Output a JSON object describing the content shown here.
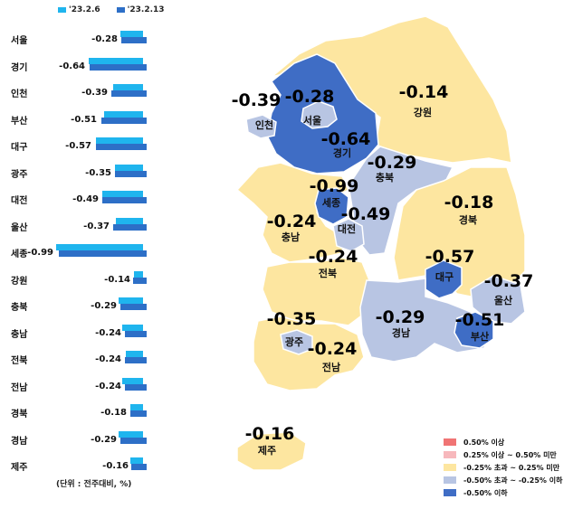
{
  "legend_top": {
    "series1": "'23.2.6",
    "series2": "'23.2.13",
    "color1": "#1fb5ee",
    "color2": "#2d6fc7"
  },
  "unit_note": "(단위 : 전주대비, %)",
  "chart_data": {
    "type": "bar",
    "orientation": "horizontal",
    "categories": [
      "서울",
      "경기",
      "인천",
      "부산",
      "대구",
      "광주",
      "대전",
      "울산",
      "세종",
      "강원",
      "충북",
      "충남",
      "전북",
      "전남",
      "경북",
      "경남",
      "제주"
    ],
    "labels": [
      "-0.28",
      "-0.64",
      "-0.39",
      "-0.51",
      "-0.57",
      "-0.35",
      "-0.49",
      "-0.37",
      "-0.99",
      "-0.14",
      "-0.29",
      "-0.24",
      "-0.24",
      "-0.24",
      "-0.18",
      "-0.29",
      "-0.16"
    ],
    "series": [
      {
        "name": "'23.2.6",
        "values": [
          -0.25,
          -0.6,
          -0.33,
          -0.43,
          -0.52,
          -0.31,
          -0.45,
          -0.3,
          -0.96,
          -0.1,
          -0.27,
          -0.23,
          -0.19,
          -0.23,
          -0.14,
          -0.27,
          -0.14
        ]
      },
      {
        "name": "'23.2.13",
        "values": [
          -0.28,
          -0.64,
          -0.39,
          -0.51,
          -0.57,
          -0.35,
          -0.49,
          -0.37,
          -0.99,
          -0.14,
          -0.29,
          -0.24,
          -0.24,
          -0.24,
          -0.18,
          -0.29,
          -0.16
        ]
      }
    ],
    "xlim": [
      -1.0,
      0
    ]
  },
  "map": {
    "regions": [
      {
        "id": "seoul",
        "name": "서울",
        "value": "-0.28",
        "color": "#b8c5e3"
      },
      {
        "id": "gyeonggi",
        "name": "경기",
        "value": "-0.64",
        "color": "#3f6dc5"
      },
      {
        "id": "incheon",
        "name": "인천",
        "value": "-0.39",
        "color": "#b8c5e3"
      },
      {
        "id": "gangwon",
        "name": "강원",
        "value": "-0.14",
        "color": "#fde6a0"
      },
      {
        "id": "chungbuk",
        "name": "충북",
        "value": "-0.29",
        "color": "#b8c5e3"
      },
      {
        "id": "sejong",
        "name": "세종",
        "value": "-0.99",
        "color": "#3f6dc5"
      },
      {
        "id": "daejeon",
        "name": "대전",
        "value": "-0.49",
        "color": "#b8c5e3"
      },
      {
        "id": "chungnam",
        "name": "충남",
        "value": "-0.24",
        "color": "#fde6a0"
      },
      {
        "id": "gyeongbuk",
        "name": "경북",
        "value": "-0.18",
        "color": "#fde6a0"
      },
      {
        "id": "daegu",
        "name": "대구",
        "value": "-0.57",
        "color": "#3f6dc5"
      },
      {
        "id": "ulsan",
        "name": "울산",
        "value": "-0.37",
        "color": "#b8c5e3"
      },
      {
        "id": "jeonbuk",
        "name": "전북",
        "value": "-0.24",
        "color": "#fde6a0"
      },
      {
        "id": "gwangju",
        "name": "광주",
        "value": "-0.35",
        "color": "#b8c5e3"
      },
      {
        "id": "jeonnam",
        "name": "전남",
        "value": "-0.24",
        "color": "#fde6a0"
      },
      {
        "id": "gyeongnam",
        "name": "경남",
        "value": "-0.29",
        "color": "#b8c5e3"
      },
      {
        "id": "busan",
        "name": "부산",
        "value": "-0.51",
        "color": "#3f6dc5"
      },
      {
        "id": "jeju",
        "name": "제주",
        "value": "-0.16",
        "color": "#fde6a0"
      }
    ]
  },
  "map_legend": [
    {
      "label": "0.50% 이상",
      "color": "#f07474"
    },
    {
      "label": "0.25% 이상 ~ 0.50% 미만",
      "color": "#f7b8bc"
    },
    {
      "label": "-0.25% 초과 ~ 0.25% 미만",
      "color": "#fde6a0"
    },
    {
      "label": "-0.50% 초과 ~ -0.25% 이하",
      "color": "#b8c5e3"
    },
    {
      "label": "-0.50% 이하",
      "color": "#3f6dc5"
    }
  ]
}
